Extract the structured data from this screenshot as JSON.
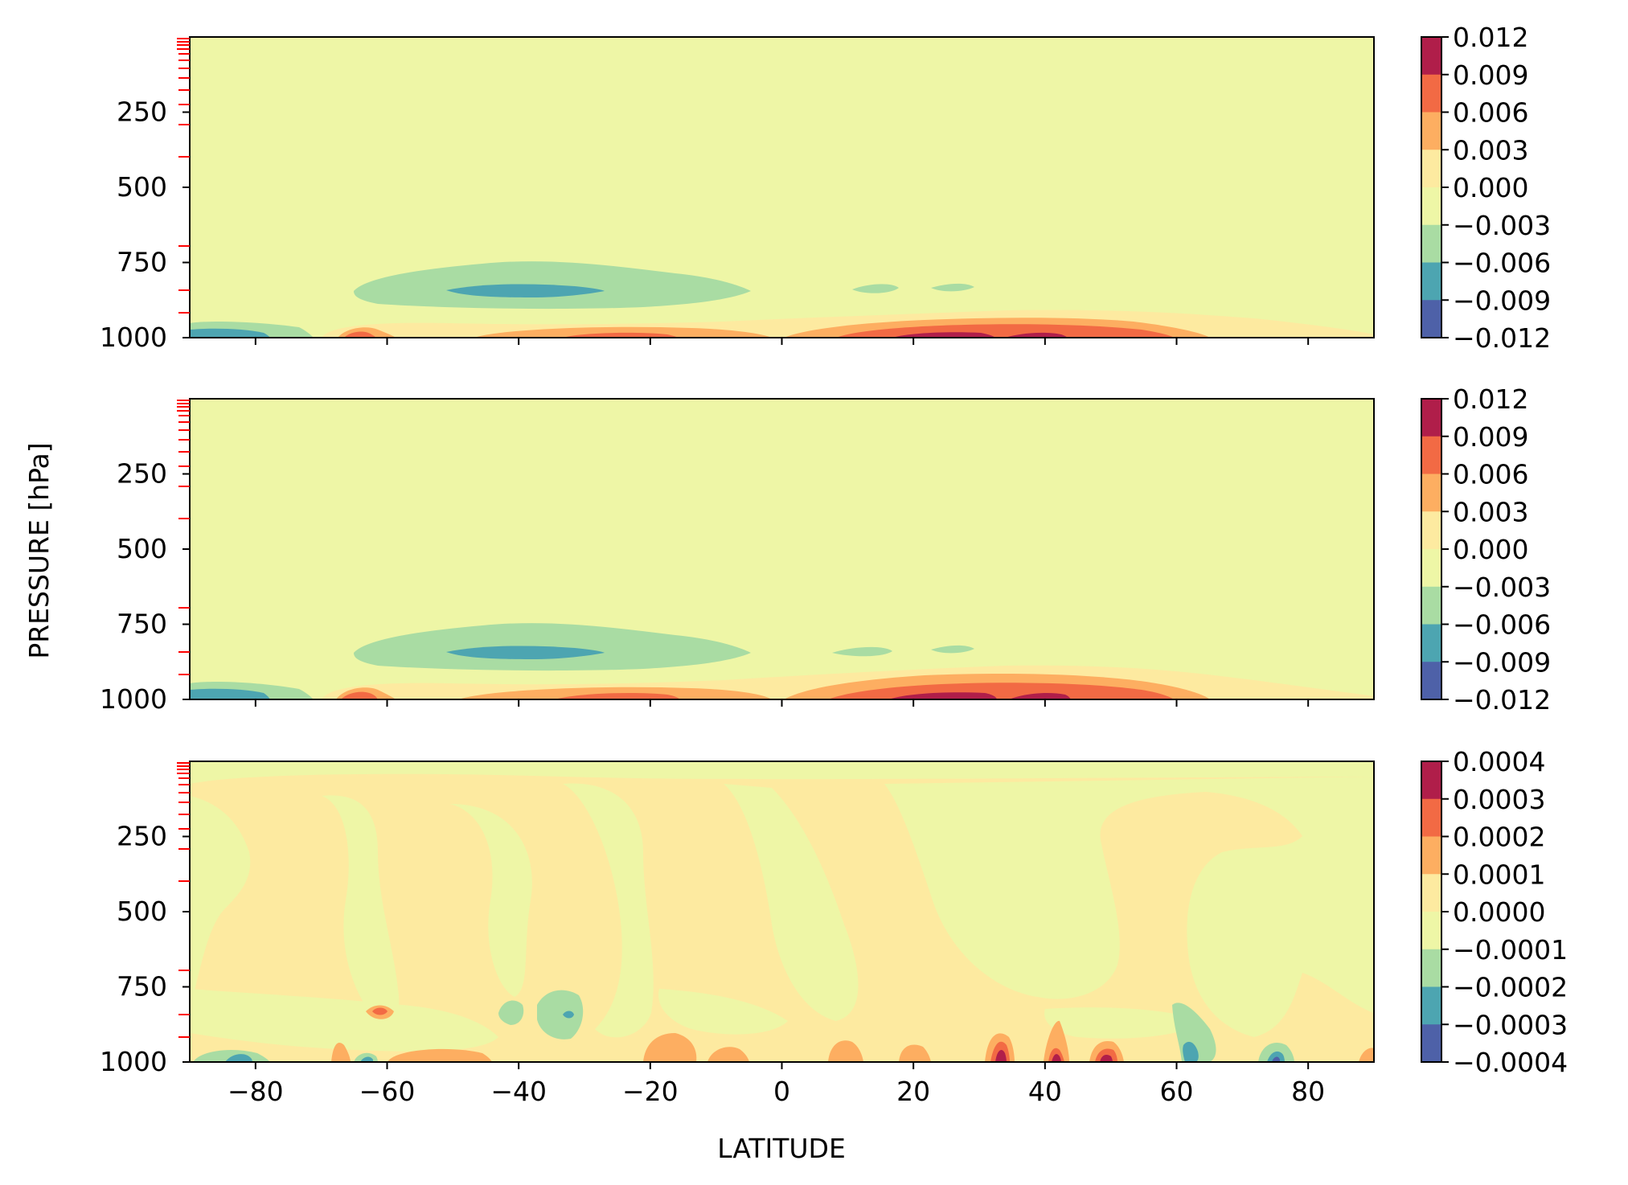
{
  "figure": {
    "ylabel": "PRESSURE [hPa]",
    "xlabel": "LATITUDE",
    "xticks": [
      "−80",
      "−60",
      "−40",
      "−20",
      "0",
      "20",
      "40",
      "60",
      "80"
    ],
    "yticks": [
      "250",
      "500",
      "750",
      "1000"
    ]
  },
  "colors": {
    "levels": [
      "#5e4fa2",
      "#3288bd",
      "#66c2a5",
      "#abdda4",
      "#e6f598",
      "#fee08b",
      "#fdae61",
      "#f46d43",
      "#d53e4f",
      "#9e0142"
    ],
    "cmap_used": [
      "#4e61a8",
      "#4da5b1",
      "#a9dca3",
      "#eef6a6",
      "#fdeaa0",
      "#fdae61",
      "#f26a44",
      "#b01e4a"
    ],
    "background": "#eef6a6",
    "red_ticks": "#ff0000"
  },
  "chart_data": [
    {
      "type": "heatmap",
      "panel": "top",
      "xlabel": "",
      "ylabel": "",
      "xlim": [
        -90,
        90
      ],
      "ylim": [
        1000,
        0
      ],
      "x_ticks": [
        -80,
        -60,
        -40,
        -20,
        0,
        20,
        40,
        60,
        80
      ],
      "y_ticks": [
        250,
        500,
        750,
        1000
      ],
      "colorbar_ticks": [
        "0.012",
        "0.009",
        "0.006",
        "0.003",
        "0.000",
        "−0.003",
        "−0.006",
        "−0.009",
        "−0.012"
      ],
      "colorbar_range": [
        -0.012,
        0.012
      ],
      "features": [
        {
          "level": -0.0045,
          "lat": [
            -65,
            -6
          ],
          "p": [
            760,
            950
          ],
          "desc": "negative band"
        },
        {
          "level": -0.0075,
          "lat": [
            -48,
            -27
          ],
          "p": [
            835,
            865
          ]
        },
        {
          "level": -0.0045,
          "lat": [
            8,
            17
          ],
          "p": [
            835,
            870
          ]
        },
        {
          "level": -0.0045,
          "lat": [
            22,
            29
          ],
          "p": [
            830,
            860
          ]
        },
        {
          "level": -0.0075,
          "lat": [
            -90,
            -76
          ],
          "p": [
            960,
            1000
          ]
        },
        {
          "level": 0.0015,
          "lat": [
            0,
            70
          ],
          "p": [
            930,
            1000
          ]
        },
        {
          "level": 0.0045,
          "lat": [
            5,
            62
          ],
          "p": [
            955,
            1000
          ]
        },
        {
          "level": 0.0075,
          "lat": [
            10,
            55
          ],
          "p": [
            970,
            1000
          ]
        },
        {
          "level": 0.0105,
          "lat": [
            22,
            42
          ],
          "p": [
            985,
            1000
          ]
        },
        {
          "level": 0.0045,
          "lat": [
            -66,
            -62
          ],
          "p": [
            975,
            1000
          ]
        },
        {
          "level": 0.003,
          "lat": [
            -45,
            -5
          ],
          "p": [
            980,
            1000
          ]
        }
      ]
    },
    {
      "type": "heatmap",
      "panel": "middle",
      "xlabel": "",
      "ylabel": "",
      "xlim": [
        -90,
        90
      ],
      "ylim": [
        1000,
        0
      ],
      "x_ticks": [
        -80,
        -60,
        -40,
        -20,
        0,
        20,
        40,
        60,
        80
      ],
      "y_ticks": [
        250,
        500,
        750,
        1000
      ],
      "colorbar_ticks": [
        "0.012",
        "0.009",
        "0.006",
        "0.003",
        "0.000",
        "−0.003",
        "−0.006",
        "−0.009",
        "−0.012"
      ],
      "colorbar_range": [
        -0.012,
        0.012
      ],
      "features": [
        {
          "level": -0.0045,
          "lat": [
            -65,
            -6
          ],
          "p": [
            760,
            950
          ]
        },
        {
          "level": -0.0075,
          "lat": [
            -48,
            -27
          ],
          "p": [
            835,
            865
          ]
        },
        {
          "level": -0.0045,
          "lat": [
            8,
            17
          ],
          "p": [
            835,
            870
          ]
        },
        {
          "level": -0.0045,
          "lat": [
            22,
            29
          ],
          "p": [
            830,
            860
          ]
        },
        {
          "level": -0.0075,
          "lat": [
            -90,
            -76
          ],
          "p": [
            960,
            1000
          ]
        },
        {
          "level": 0.0015,
          "lat": [
            0,
            70
          ],
          "p": [
            920,
            1000
          ]
        },
        {
          "level": 0.0045,
          "lat": [
            5,
            62
          ],
          "p": [
            945,
            1000
          ]
        },
        {
          "level": 0.0075,
          "lat": [
            10,
            55
          ],
          "p": [
            965,
            1000
          ]
        },
        {
          "level": 0.0105,
          "lat": [
            22,
            42
          ],
          "p": [
            982,
            1000
          ]
        },
        {
          "level": 0.0045,
          "lat": [
            -66,
            -62
          ],
          "p": [
            970,
            1000
          ]
        },
        {
          "level": 0.003,
          "lat": [
            -45,
            -5
          ],
          "p": [
            975,
            1000
          ]
        }
      ]
    },
    {
      "type": "heatmap",
      "panel": "bottom",
      "xlabel": "LATITUDE",
      "ylabel": "",
      "xlim": [
        -90,
        90
      ],
      "ylim": [
        1000,
        0
      ],
      "x_ticks": [
        -80,
        -60,
        -40,
        -20,
        0,
        20,
        40,
        60,
        80
      ],
      "y_ticks": [
        250,
        500,
        750,
        1000
      ],
      "colorbar_ticks": [
        "0.0004",
        "0.0003",
        "0.0002",
        "0.0001",
        "0.0000",
        "−0.0001",
        "−0.0002",
        "−0.0003",
        "−0.0004"
      ],
      "colorbar_range": [
        -0.0004,
        0.0004
      ],
      "features": [
        {
          "level": 5e-05,
          "lat": [
            -90,
            90
          ],
          "p": [
            0,
            1000
          ],
          "desc": "mottled weak positive/negative background"
        },
        {
          "level": 0.00025,
          "lat": [
            -65,
            -61
          ],
          "p": [
            820,
            860
          ]
        },
        {
          "level": -0.00015,
          "lat": [
            -43,
            -40
          ],
          "p": [
            820,
            860
          ]
        },
        {
          "level": -0.00025,
          "lat": [
            -37,
            -30
          ],
          "p": [
            800,
            880
          ]
        },
        {
          "level": 0.00015,
          "lat": [
            -22,
            -16
          ],
          "p": [
            950,
            1000
          ]
        },
        {
          "level": 0.00035,
          "lat": [
            32,
            34
          ],
          "p": [
            940,
            1000
          ]
        },
        {
          "level": 0.00035,
          "lat": [
            40,
            43
          ],
          "p": [
            960,
            1000
          ]
        },
        {
          "level": 0.00035,
          "lat": [
            47,
            50
          ],
          "p": [
            960,
            1000
          ]
        },
        {
          "level": -0.00025,
          "lat": [
            60,
            63
          ],
          "p": [
            900,
            1000
          ]
        },
        {
          "level": -0.00035,
          "lat": [
            74,
            77
          ],
          "p": [
            960,
            1000
          ]
        }
      ]
    }
  ]
}
